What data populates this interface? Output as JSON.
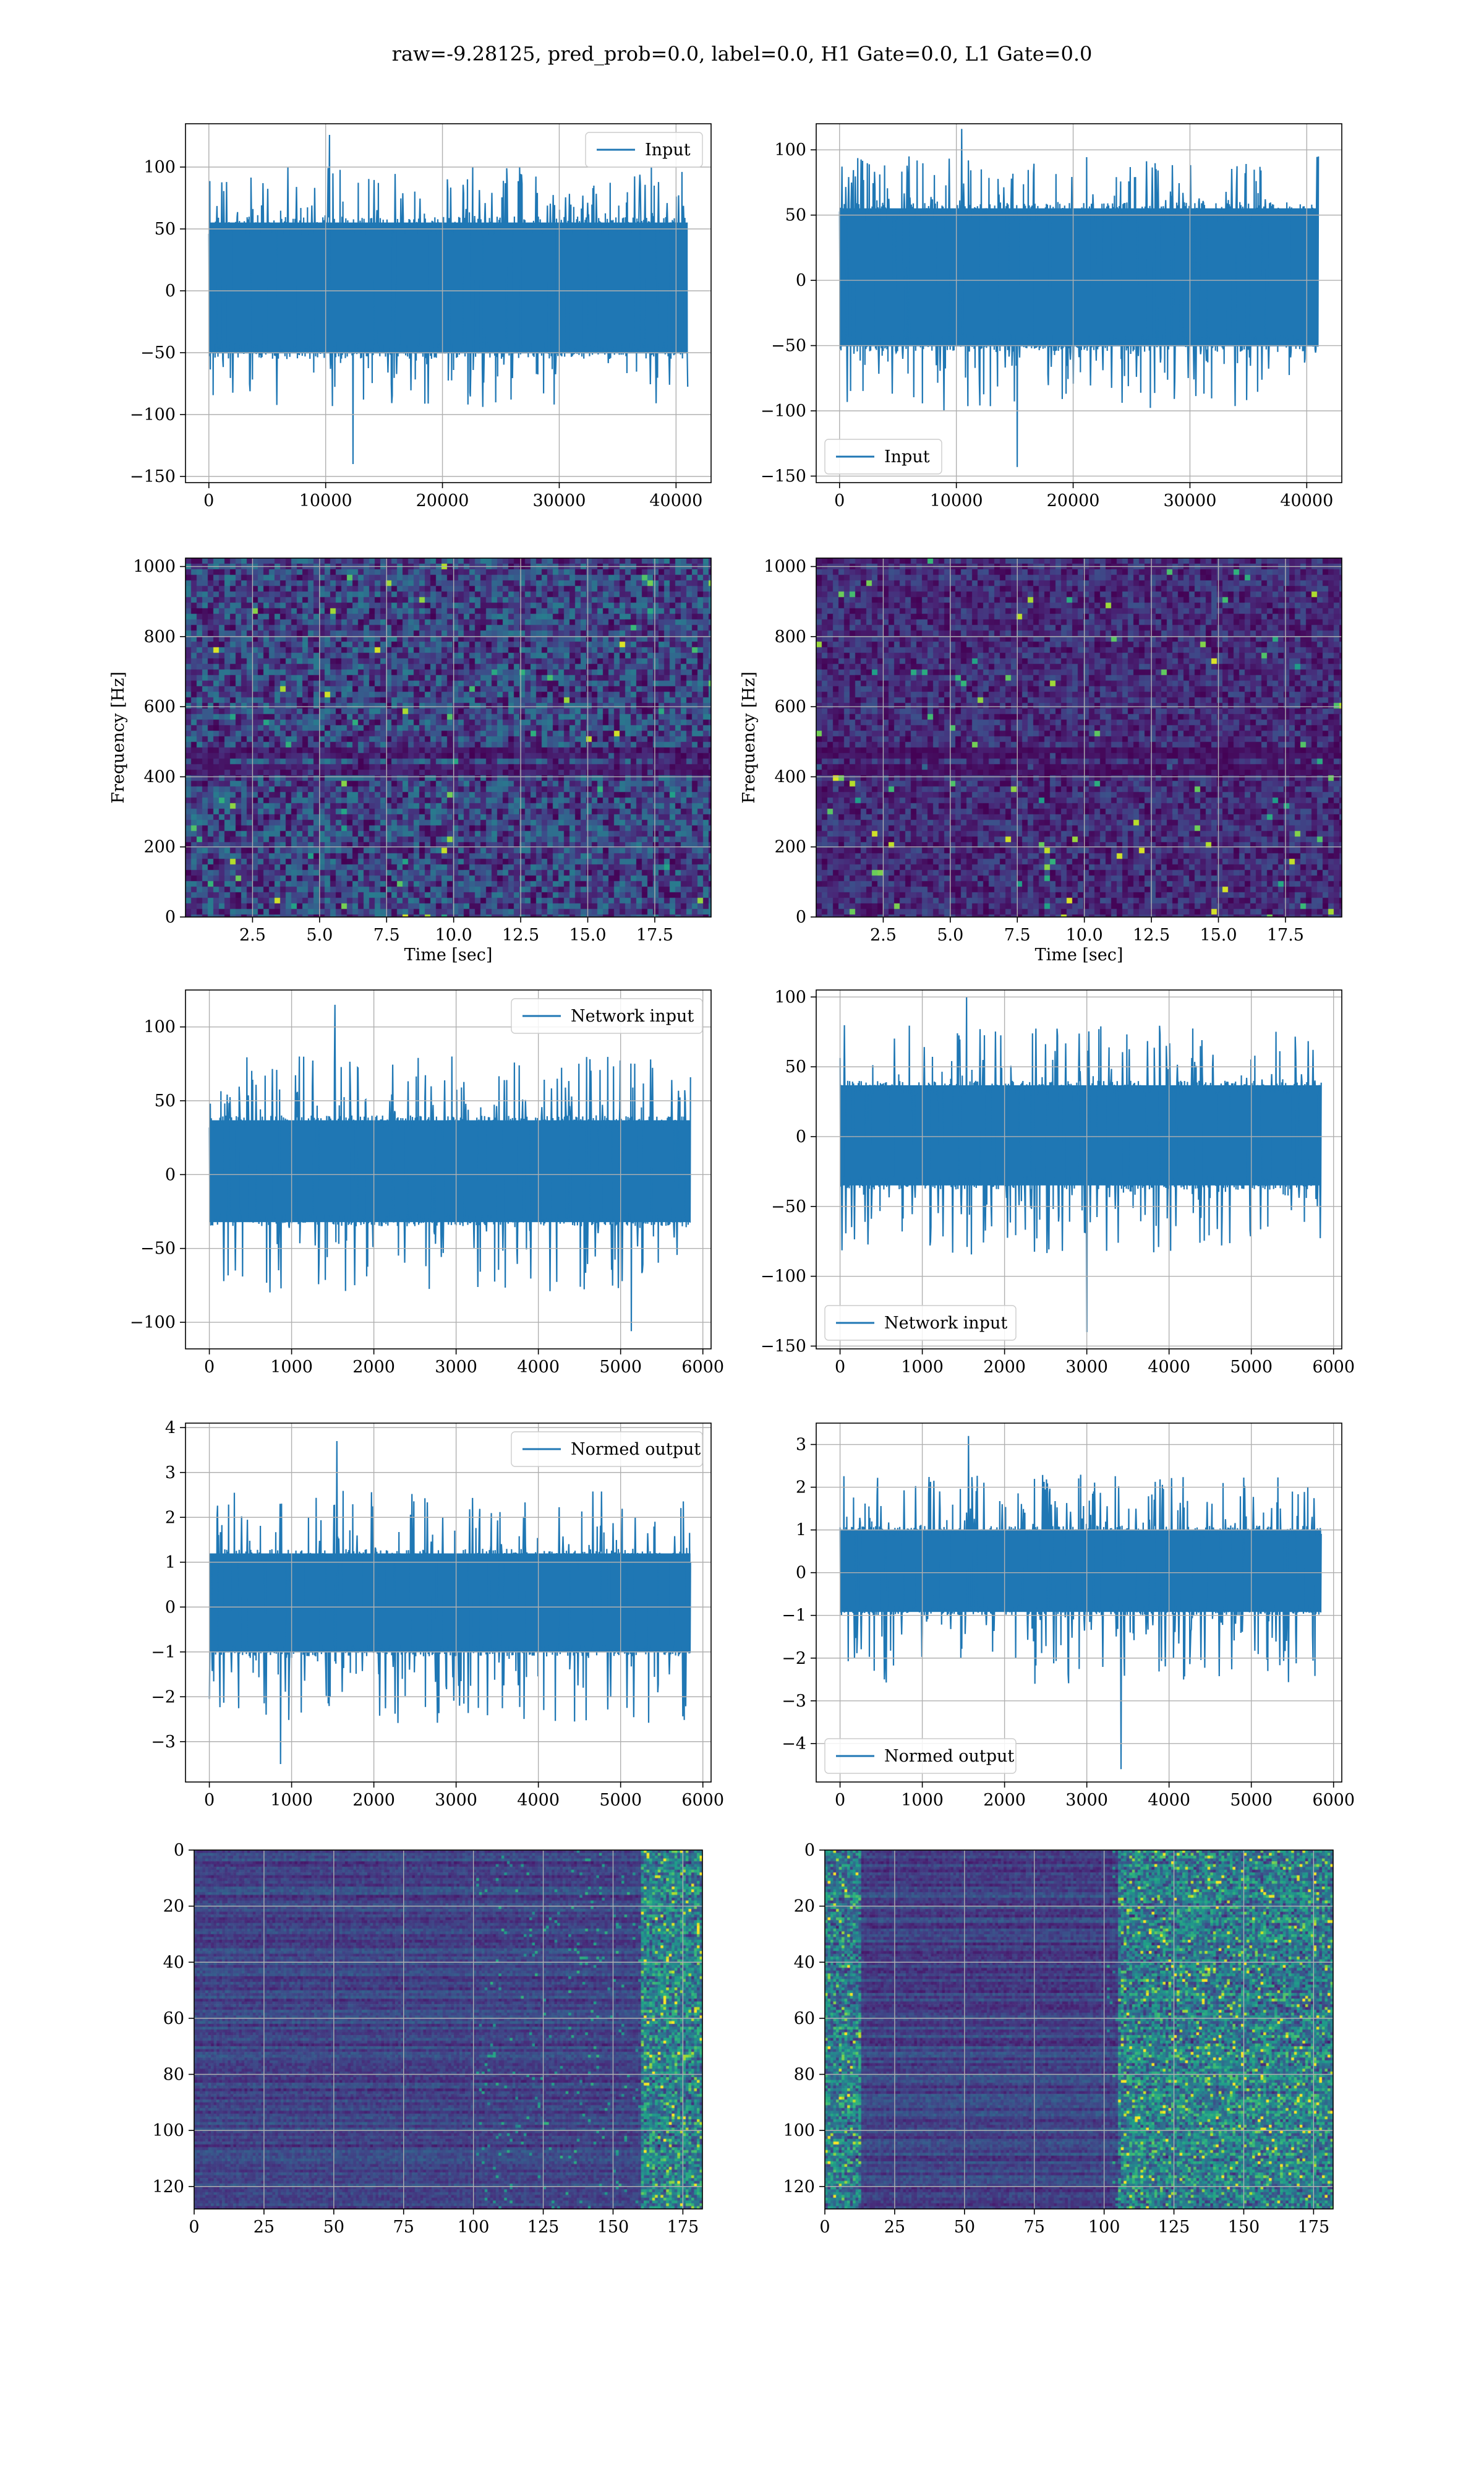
{
  "title": "raw=-9.28125, pred_prob=0.0, label=0.0, H1 Gate=0.0, L1 Gate=0.0",
  "colors": {
    "line": "#1f77b4",
    "grid": "#b0b0b0",
    "viridis": [
      "#440154",
      "#482878",
      "#3e4a89",
      "#31688e",
      "#26828e",
      "#1f9e89",
      "#35b779",
      "#6ece58",
      "#b5de2b",
      "#fde725"
    ]
  },
  "chart_data": [
    {
      "id": "input-left",
      "type": "line",
      "series_name": "Input",
      "legend": "upper right",
      "xlim": [
        -2000,
        43000
      ],
      "ylim": [
        -155,
        135
      ],
      "xticks": [
        0,
        10000,
        20000,
        30000,
        40000
      ],
      "yticks": [
        -150,
        -100,
        -50,
        0,
        50,
        100
      ],
      "x_range": [
        0,
        41000
      ],
      "band": [
        -55,
        60
      ],
      "spike_up": 100,
      "spike_down": -95,
      "peak_max": 126,
      "peak_min": -140,
      "seed": 11
    },
    {
      "id": "input-right",
      "type": "line",
      "series_name": "Input",
      "legend": "lower left",
      "xlim": [
        -2000,
        43000
      ],
      "ylim": [
        -155,
        120
      ],
      "xticks": [
        0,
        10000,
        20000,
        30000,
        40000
      ],
      "yticks": [
        -150,
        -100,
        -50,
        0,
        50,
        100
      ],
      "x_range": [
        0,
        41000
      ],
      "band": [
        -55,
        60
      ],
      "spike_up": 95,
      "spike_down": -100,
      "peak_max": 116,
      "peak_min": -143,
      "seed": 23
    },
    {
      "id": "spectrogram-left",
      "type": "heatmap",
      "variant": "spectrogram",
      "xlabel": "Time [sec]",
      "ylabel": "Frequency [Hz]",
      "xlim": [
        0,
        19.6
      ],
      "ylim": [
        0,
        1024
      ],
      "xticks": [
        2.5,
        5.0,
        7.5,
        10.0,
        12.5,
        15.0,
        17.5
      ],
      "yticks": [
        0,
        200,
        400,
        600,
        800,
        1000
      ],
      "intensity": 0.3,
      "seed": 31
    },
    {
      "id": "spectrogram-right",
      "type": "heatmap",
      "variant": "spectrogram",
      "xlabel": "Time [sec]",
      "ylabel": "Frequency [Hz]",
      "xlim": [
        0,
        19.6
      ],
      "ylim": [
        0,
        1024
      ],
      "xticks": [
        2.5,
        5.0,
        7.5,
        10.0,
        12.5,
        15.0,
        17.5
      ],
      "yticks": [
        0,
        200,
        400,
        600,
        800,
        1000
      ],
      "intensity": 0.18,
      "seed": 37
    },
    {
      "id": "network-input-left",
      "type": "line",
      "series_name": "Network input",
      "legend": "upper right",
      "xlim": [
        -290,
        6100
      ],
      "ylim": [
        -118,
        125
      ],
      "xticks": [
        0,
        1000,
        2000,
        3000,
        4000,
        5000,
        6000
      ],
      "yticks": [
        -100,
        -50,
        0,
        50,
        100
      ],
      "x_range": [
        0,
        5850
      ],
      "band": [
        -35,
        40
      ],
      "spike_up": 80,
      "spike_down": -80,
      "peak_max": 115,
      "peak_min": -106,
      "seed": 41
    },
    {
      "id": "network-input-right",
      "type": "line",
      "series_name": "Network input",
      "legend": "lower left",
      "xlim": [
        -290,
        6100
      ],
      "ylim": [
        -152,
        105
      ],
      "xticks": [
        0,
        1000,
        2000,
        3000,
        4000,
        5000,
        6000
      ],
      "yticks": [
        -150,
        -100,
        -50,
        0,
        50,
        100
      ],
      "x_range": [
        0,
        5850
      ],
      "band": [
        -38,
        40
      ],
      "spike_up": 80,
      "spike_down": -85,
      "peak_max": 100,
      "peak_min": -140,
      "seed": 47
    },
    {
      "id": "normed-output-left",
      "type": "line",
      "series_name": "Normed output",
      "legend": "upper right",
      "xlim": [
        -290,
        6100
      ],
      "ylim": [
        -3.9,
        4.1
      ],
      "xticks": [
        0,
        1000,
        2000,
        3000,
        4000,
        5000,
        6000
      ],
      "yticks": [
        -3,
        -2,
        -1,
        0,
        1,
        2,
        3,
        4
      ],
      "x_range": [
        0,
        5850
      ],
      "band": [
        -1.1,
        1.3
      ],
      "spike_up": 2.6,
      "spike_down": -2.6,
      "peak_max": 3.7,
      "peak_min": -3.5,
      "seed": 53
    },
    {
      "id": "normed-output-right",
      "type": "line",
      "series_name": "Normed output",
      "legend": "lower left",
      "xlim": [
        -290,
        6100
      ],
      "ylim": [
        -4.9,
        3.5
      ],
      "xticks": [
        0,
        1000,
        2000,
        3000,
        4000,
        5000,
        6000
      ],
      "yticks": [
        -4,
        -3,
        -2,
        -1,
        0,
        1,
        2,
        3
      ],
      "x_range": [
        0,
        5850
      ],
      "band": [
        -1.0,
        1.1
      ],
      "spike_up": 2.3,
      "spike_down": -2.6,
      "peak_max": 3.2,
      "peak_min": -4.6,
      "seed": 59
    },
    {
      "id": "feature-map-left",
      "type": "heatmap",
      "variant": "feature_map",
      "xlim": [
        0,
        182
      ],
      "ylim": [
        128,
        0
      ],
      "xticks": [
        0,
        25,
        50,
        75,
        100,
        125,
        150,
        175
      ],
      "yticks": [
        0,
        20,
        40,
        60,
        80,
        100,
        120
      ],
      "hot_columns": [
        160,
        182
      ],
      "seed": 61
    },
    {
      "id": "feature-map-right",
      "type": "heatmap",
      "variant": "feature_map",
      "xlim": [
        0,
        182
      ],
      "ylim": [
        128,
        0
      ],
      "xticks": [
        0,
        25,
        50,
        75,
        100,
        125,
        150,
        175
      ],
      "yticks": [
        0,
        20,
        40,
        60,
        80,
        100,
        120
      ],
      "hot_columns": [
        0,
        12,
        105,
        182
      ],
      "seed": 67
    }
  ]
}
